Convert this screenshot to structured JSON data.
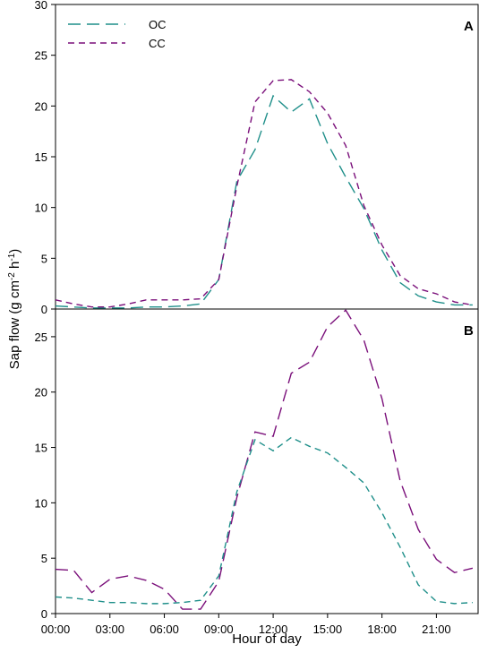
{
  "colors": {
    "OC": "#1f8f8a",
    "CC": "#7a0f7a",
    "axis": "#000000"
  },
  "x_axis_title": "Hour of day",
  "y_axis_title": {
    "main": "Sap flow (g cm",
    "sup1": "-2",
    "mid": " h",
    "sup2": "-1",
    "end": ")"
  },
  "chart_data": [
    {
      "type": "line",
      "panel_label": "A",
      "ylim": [
        0,
        30
      ],
      "yticks": [
        0,
        5,
        10,
        15,
        20,
        25,
        30
      ],
      "legend_position": "top-left",
      "x": [
        0,
        1,
        2,
        3,
        4,
        5,
        6,
        7,
        8,
        9,
        10,
        11,
        12,
        13,
        14,
        15,
        16,
        17,
        18,
        19,
        20,
        21,
        22,
        23
      ],
      "series": [
        {
          "name": "OC",
          "style": "long-dash",
          "values": [
            0.3,
            0.2,
            0.1,
            0.1,
            0.1,
            0.2,
            0.2,
            0.3,
            0.5,
            2.9,
            12.6,
            15.7,
            21.0,
            19.4,
            20.7,
            16.3,
            13.0,
            9.9,
            5.8,
            2.6,
            1.3,
            0.7,
            0.4,
            0.4
          ]
        },
        {
          "name": "CC",
          "style": "short-dash",
          "values": [
            0.9,
            0.5,
            0.2,
            0.2,
            0.5,
            0.9,
            0.9,
            0.9,
            1.0,
            2.9,
            12.1,
            20.4,
            22.5,
            22.6,
            21.4,
            19.3,
            16.1,
            10.2,
            6.3,
            3.3,
            2.0,
            1.5,
            0.7,
            0.4
          ]
        }
      ]
    },
    {
      "type": "line",
      "panel_label": "B",
      "ylim": [
        0,
        27.5
      ],
      "yticks": [
        0,
        5,
        10,
        15,
        20,
        25
      ],
      "x": [
        0,
        1,
        2,
        3,
        4,
        5,
        6,
        7,
        8,
        9,
        10,
        11,
        12,
        13,
        14,
        15,
        16,
        17,
        18,
        19,
        20,
        21,
        22,
        23
      ],
      "series": [
        {
          "name": "CC",
          "style": "long-dash",
          "values": [
            4.0,
            3.9,
            1.9,
            3.1,
            3.4,
            3.0,
            2.2,
            0.4,
            0.4,
            2.9,
            10.5,
            16.4,
            16.0,
            21.7,
            22.7,
            25.9,
            27.4,
            24.7,
            19.4,
            12.0,
            7.6,
            4.9,
            3.7,
            4.1
          ]
        },
        {
          "name": "OC",
          "style": "short-dash",
          "values": [
            1.5,
            1.4,
            1.2,
            1.0,
            1.0,
            0.9,
            0.9,
            1.0,
            1.2,
            3.4,
            11.0,
            15.7,
            14.7,
            15.9,
            15.1,
            14.5,
            13.2,
            11.8,
            9.1,
            6.0,
            2.6,
            1.1,
            0.9,
            1.0
          ]
        }
      ]
    }
  ],
  "xtick_labels": [
    "00:00",
    "03:00",
    "06:00",
    "09:00",
    "12:00",
    "15:00",
    "18:00",
    "21:00"
  ],
  "xtick_hours": [
    0,
    3,
    6,
    9,
    12,
    15,
    18,
    21
  ]
}
